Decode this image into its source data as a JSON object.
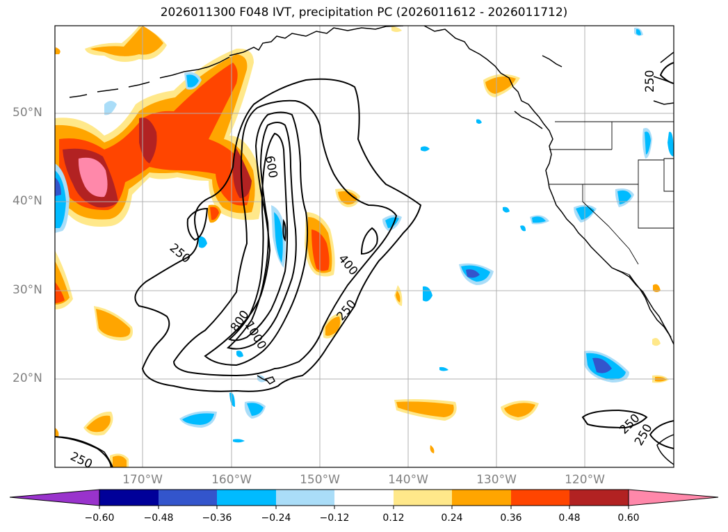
{
  "title": "2026011300 F048 IVT, precipitation PC (2026011612 - 2026011712)",
  "lat_labels": [
    "50°N",
    "40°N",
    "30°N",
    "20°N"
  ],
  "lon_labels": [
    "170°W",
    "160°W",
    "150°W",
    "140°W",
    "130°W",
    "120°W"
  ],
  "contour_labels": [
    "250",
    "250",
    "250",
    "250",
    "250",
    "250",
    "400",
    "600",
    "800",
    "1000"
  ],
  "colorbar": {
    "ticks": [
      "−0.60",
      "−0.48",
      "−0.36",
      "−0.24",
      "−0.12",
      "0.12",
      "0.24",
      "0.36",
      "0.48",
      "0.60"
    ],
    "colors": [
      "#9933cc",
      "#000099",
      "#3355cc",
      "#00bbff",
      "#aaddf8",
      "#ffffff",
      "#ffe88a",
      "#ffa500",
      "#ff4500",
      "#b22222",
      "#ff88aa"
    ]
  },
  "chart_data": {
    "type": "map",
    "region": "North-East Pacific",
    "contour_levels_ivt": [
      250,
      400,
      600,
      800,
      1000
    ],
    "colorbar_levels": [
      -0.6,
      -0.48,
      -0.36,
      -0.24,
      -0.12,
      0.12,
      0.24,
      0.36,
      0.48,
      0.6
    ],
    "lat_range": [
      10,
      60
    ],
    "lon_range": [
      -180,
      -110
    ]
  }
}
